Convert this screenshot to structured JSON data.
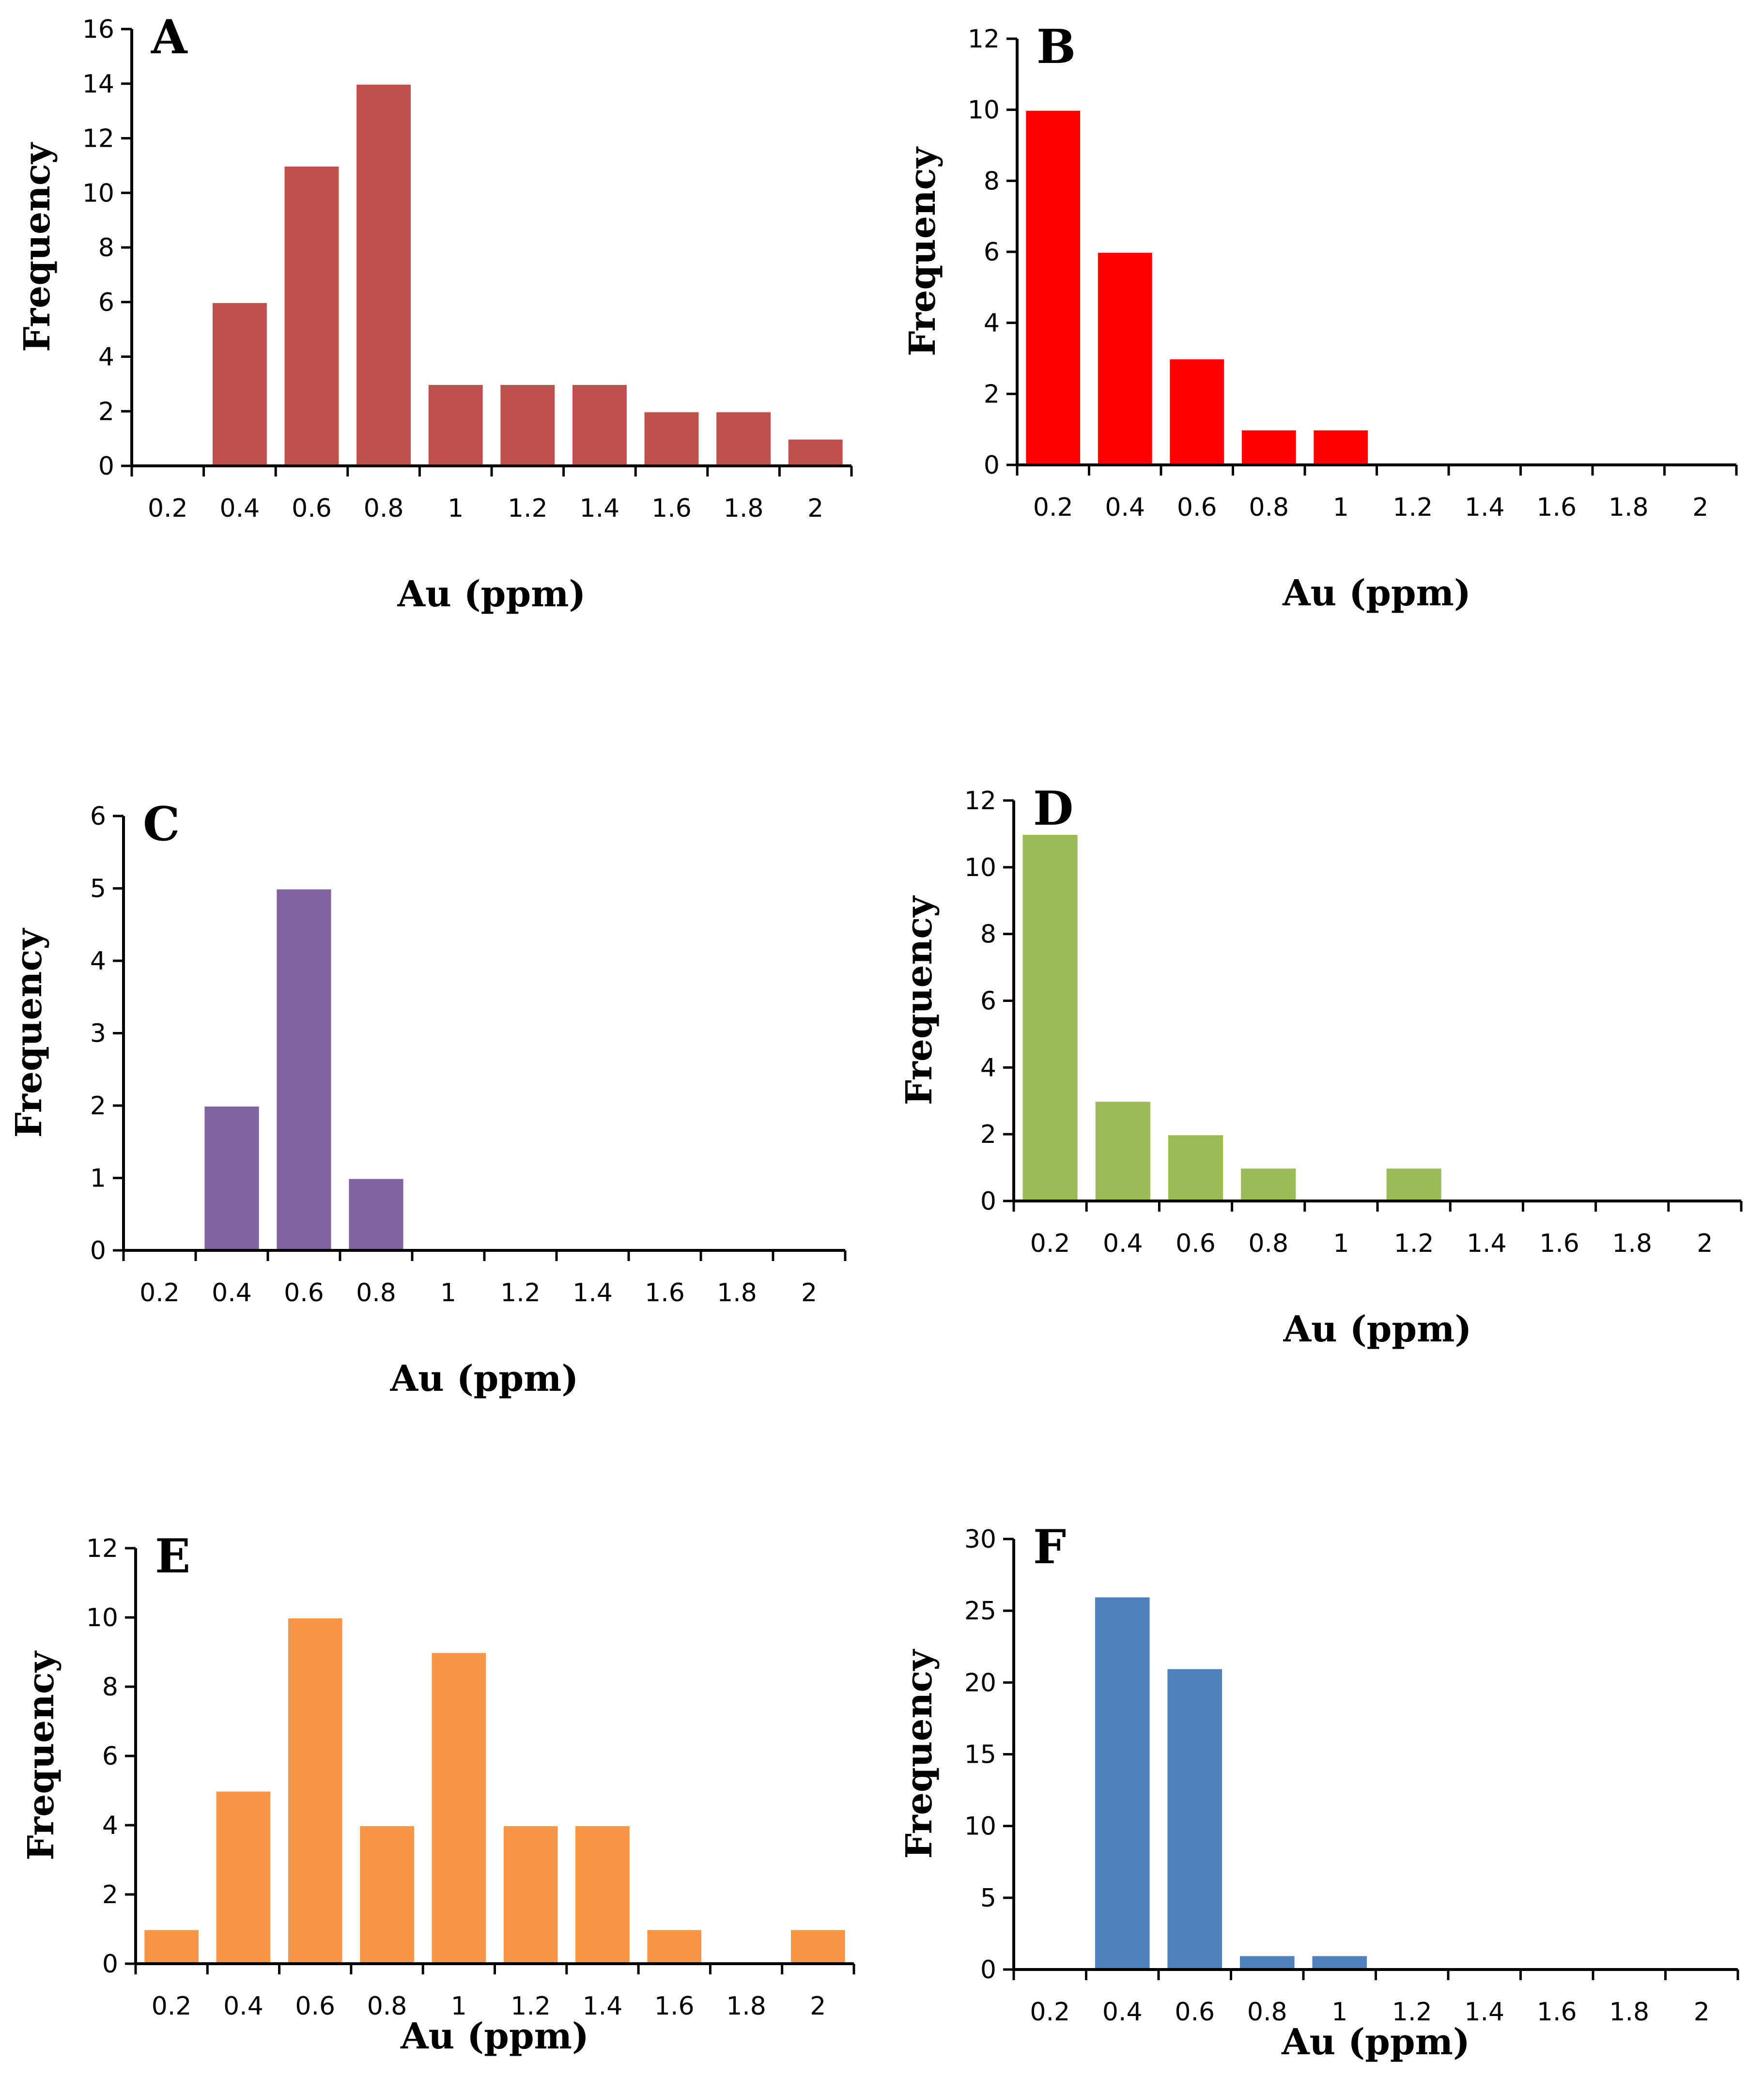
{
  "chart_data": [
    {
      "panel": "A",
      "type": "bar",
      "categories": [
        "0.2",
        "0.4",
        "0.6",
        "0.8",
        "1",
        "1.2",
        "1.4",
        "1.6",
        "1.8",
        "2"
      ],
      "values": [
        0,
        6,
        11,
        14,
        3,
        3,
        3,
        2,
        2,
        1
      ],
      "xlabel": "Au (ppm)",
      "ylabel": "Frequency",
      "ylim": [
        0,
        16
      ],
      "yticks": [
        "0",
        "2",
        "4",
        "6",
        "8",
        "10",
        "12",
        "14",
        "16"
      ],
      "color": "#c0504d"
    },
    {
      "panel": "B",
      "type": "bar",
      "categories": [
        "0.2",
        "0.4",
        "0.6",
        "0.8",
        "1",
        "1.2",
        "1.4",
        "1.6",
        "1.8",
        "2"
      ],
      "values": [
        10,
        6,
        3,
        1,
        1,
        0,
        0,
        0,
        0,
        0
      ],
      "xlabel": "Au (ppm)",
      "ylabel": "Frequency",
      "ylim": [
        0,
        12
      ],
      "yticks": [
        "0",
        "2",
        "4",
        "6",
        "8",
        "10",
        "12"
      ],
      "color": "#ff0000"
    },
    {
      "panel": "C",
      "type": "bar",
      "categories": [
        "0.2",
        "0.4",
        "0.6",
        "0.8",
        "1",
        "1.2",
        "1.4",
        "1.6",
        "1.8",
        "2"
      ],
      "values": [
        0,
        2,
        5,
        1,
        0,
        0,
        0,
        0,
        0,
        0
      ],
      "xlabel": "Au (ppm)",
      "ylabel": "Frequency",
      "ylim": [
        0,
        6
      ],
      "yticks": [
        "0",
        "1",
        "2",
        "3",
        "4",
        "5",
        "6"
      ],
      "color": "#8064a2"
    },
    {
      "panel": "D",
      "type": "bar",
      "categories": [
        "0.2",
        "0.4",
        "0.6",
        "0.8",
        "1",
        "1.2",
        "1.4",
        "1.6",
        "1.8",
        "2"
      ],
      "values": [
        11,
        3,
        2,
        1,
        0,
        1,
        0,
        0,
        0,
        0
      ],
      "xlabel": "Au (ppm)",
      "ylabel": "Frequency",
      "ylim": [
        0,
        12
      ],
      "yticks": [
        "0",
        "2",
        "4",
        "6",
        "8",
        "10",
        "12"
      ],
      "color": "#9bbb59"
    },
    {
      "panel": "E",
      "type": "bar",
      "categories": [
        "0.2",
        "0.4",
        "0.6",
        "0.8",
        "1",
        "1.2",
        "1.4",
        "1.6",
        "1.8",
        "2"
      ],
      "values": [
        1,
        5,
        10,
        4,
        9,
        4,
        4,
        1,
        0,
        1
      ],
      "xlabel": "Au (ppm)",
      "ylabel": "Frequency",
      "ylim": [
        0,
        12
      ],
      "yticks": [
        "0",
        "2",
        "4",
        "6",
        "8",
        "10",
        "12"
      ],
      "color": "#f79646"
    },
    {
      "panel": "F",
      "type": "bar",
      "categories": [
        "0.2",
        "0.4",
        "0.6",
        "0.8",
        "1",
        "1.2",
        "1.4",
        "1.6",
        "1.8",
        "2"
      ],
      "values": [
        0,
        26,
        21,
        1,
        1,
        0,
        0,
        0,
        0,
        0
      ],
      "xlabel": "Au (ppm)",
      "ylabel": "Frequency",
      "ylim": [
        0,
        30
      ],
      "yticks": [
        "0",
        "5",
        "10",
        "15",
        "20",
        "25",
        "30"
      ],
      "color": "#4f81bd"
    }
  ]
}
